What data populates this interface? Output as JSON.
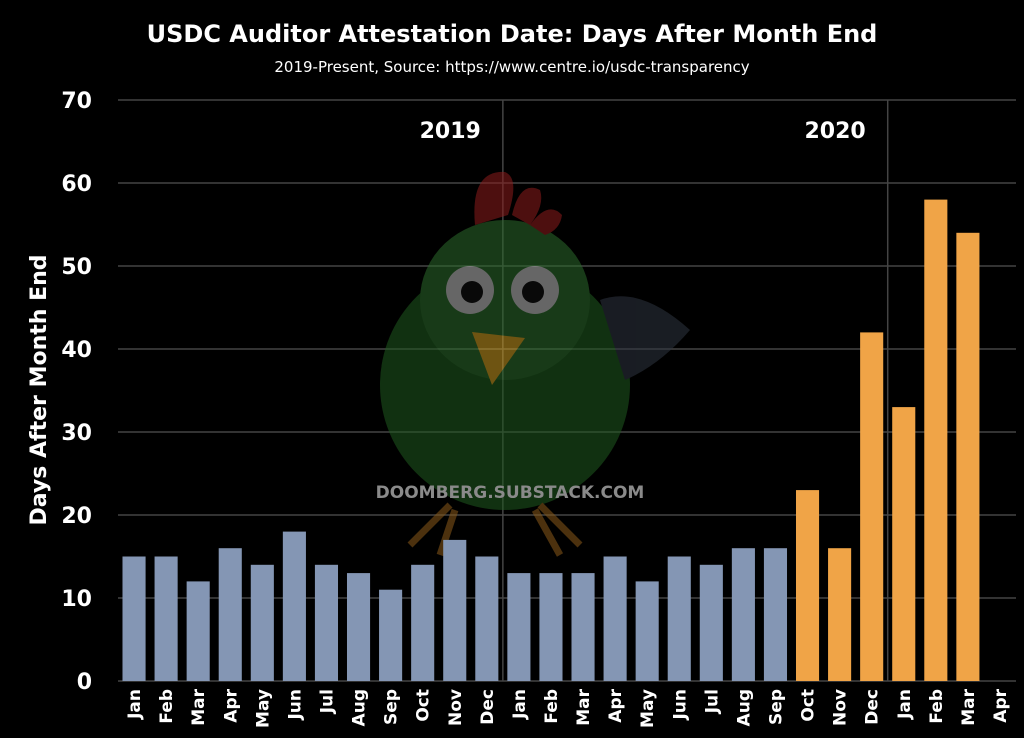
{
  "chart_data": {
    "type": "bar",
    "title": "USDC Auditor Attestation Date: Days After Month End",
    "subtitle": "2019-Present, Source: https://www.centre.io/usdc-transparency",
    "ylabel": "Days After Month End",
    "xlabel": "",
    "ylim": [
      0,
      70
    ],
    "yticks": [
      0,
      10,
      20,
      30,
      40,
      50,
      60,
      70
    ],
    "grid": true,
    "categories": [
      "Jan",
      "Feb",
      "Mar",
      "Apr",
      "May",
      "Jun",
      "Jul",
      "Aug",
      "Sep",
      "Oct",
      "Nov",
      "Dec",
      "Jan",
      "Feb",
      "Mar",
      "Apr",
      "May",
      "Jun",
      "Jul",
      "Aug",
      "Sep",
      "Oct",
      "Nov",
      "Dec",
      "Jan",
      "Feb",
      "Mar",
      "Apr"
    ],
    "values": [
      15,
      15,
      12,
      16,
      14,
      18,
      14,
      13,
      11,
      14,
      17,
      15,
      13,
      13,
      13,
      15,
      12,
      15,
      14,
      16,
      16,
      23,
      16,
      42,
      33,
      58,
      54,
      null
    ],
    "highlight_from_index": 21,
    "colors": {
      "normal": "#8496b4",
      "highlight": "#f0a447",
      "grid": "#444444"
    },
    "year_markers": [
      {
        "label": "2019",
        "after_index": 11
      },
      {
        "label": "2020",
        "after_index": 23
      }
    ],
    "watermark": "DOOMBERG.SUBSTACK.COM"
  }
}
